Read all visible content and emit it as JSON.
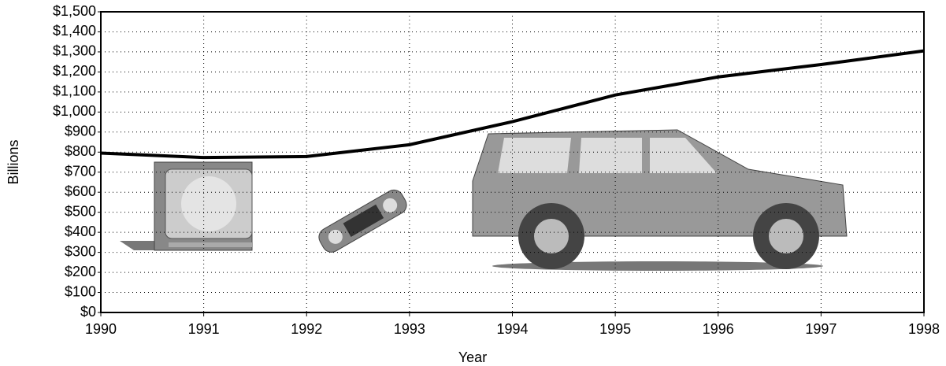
{
  "chart_data": {
    "type": "line",
    "x_label": "Year",
    "y_label": "Billions",
    "x": [
      1990,
      1991,
      1992,
      1993,
      1994,
      1995,
      1996,
      1997,
      1998
    ],
    "values": [
      795,
      773,
      778,
      837,
      952,
      1085,
      1175,
      1237,
      1305
    ],
    "color": "#000000",
    "xlim": [
      1990,
      1998
    ],
    "xticks": [
      1990,
      1991,
      1992,
      1993,
      1994,
      1995,
      1996,
      1997,
      1998
    ],
    "ylim": [
      0,
      1500
    ],
    "yticks": [
      {
        "value": 0,
        "label": "$0"
      },
      {
        "value": 100,
        "label": "$100"
      },
      {
        "value": 200,
        "label": "$200"
      },
      {
        "value": 300,
        "label": "$300"
      },
      {
        "value": 400,
        "label": "$400"
      },
      {
        "value": 500,
        "label": "$500"
      },
      {
        "value": 600,
        "label": "$600"
      },
      {
        "value": 700,
        "label": "$700"
      },
      {
        "value": 800,
        "label": "$800"
      },
      {
        "value": 900,
        "label": "$900"
      },
      {
        "value": 1000,
        "label": "$1,000"
      },
      {
        "value": 1100,
        "label": "$1,100"
      },
      {
        "value": 1200,
        "label": "$1,200"
      },
      {
        "value": 1300,
        "label": "$1,300"
      },
      {
        "value": 1400,
        "label": "$1,400"
      },
      {
        "value": 1500,
        "label": "$1,500"
      }
    ],
    "grid": true
  }
}
